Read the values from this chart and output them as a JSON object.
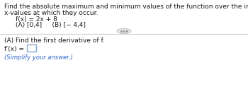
{
  "line1": "Find the absolute maximum and minimum values of the function over the indicated interval, and indicate the",
  "line2": "x-values at which they occur.",
  "func_line": "f(x) = 2x + 8",
  "intervals_line": "(A) [0,4]     (B) [− 4,4]",
  "section_header": "(A) Find the first derivative of f.",
  "derivative_label": "f′(x) =",
  "hint_line": "(Simplify your answer.)",
  "bg_color": "#ffffff",
  "text_color": "#1a1a1a",
  "hint_color": "#3366cc",
  "separator_color": "#cccccc",
  "box_edge_color": "#88aacc",
  "ellipsis_bg": "#e8e8e8",
  "ellipsis_edge": "#bbbbbb",
  "ellipsis_dot_color": "#999999",
  "fs_main": 6.5,
  "fs_hint": 6.0
}
